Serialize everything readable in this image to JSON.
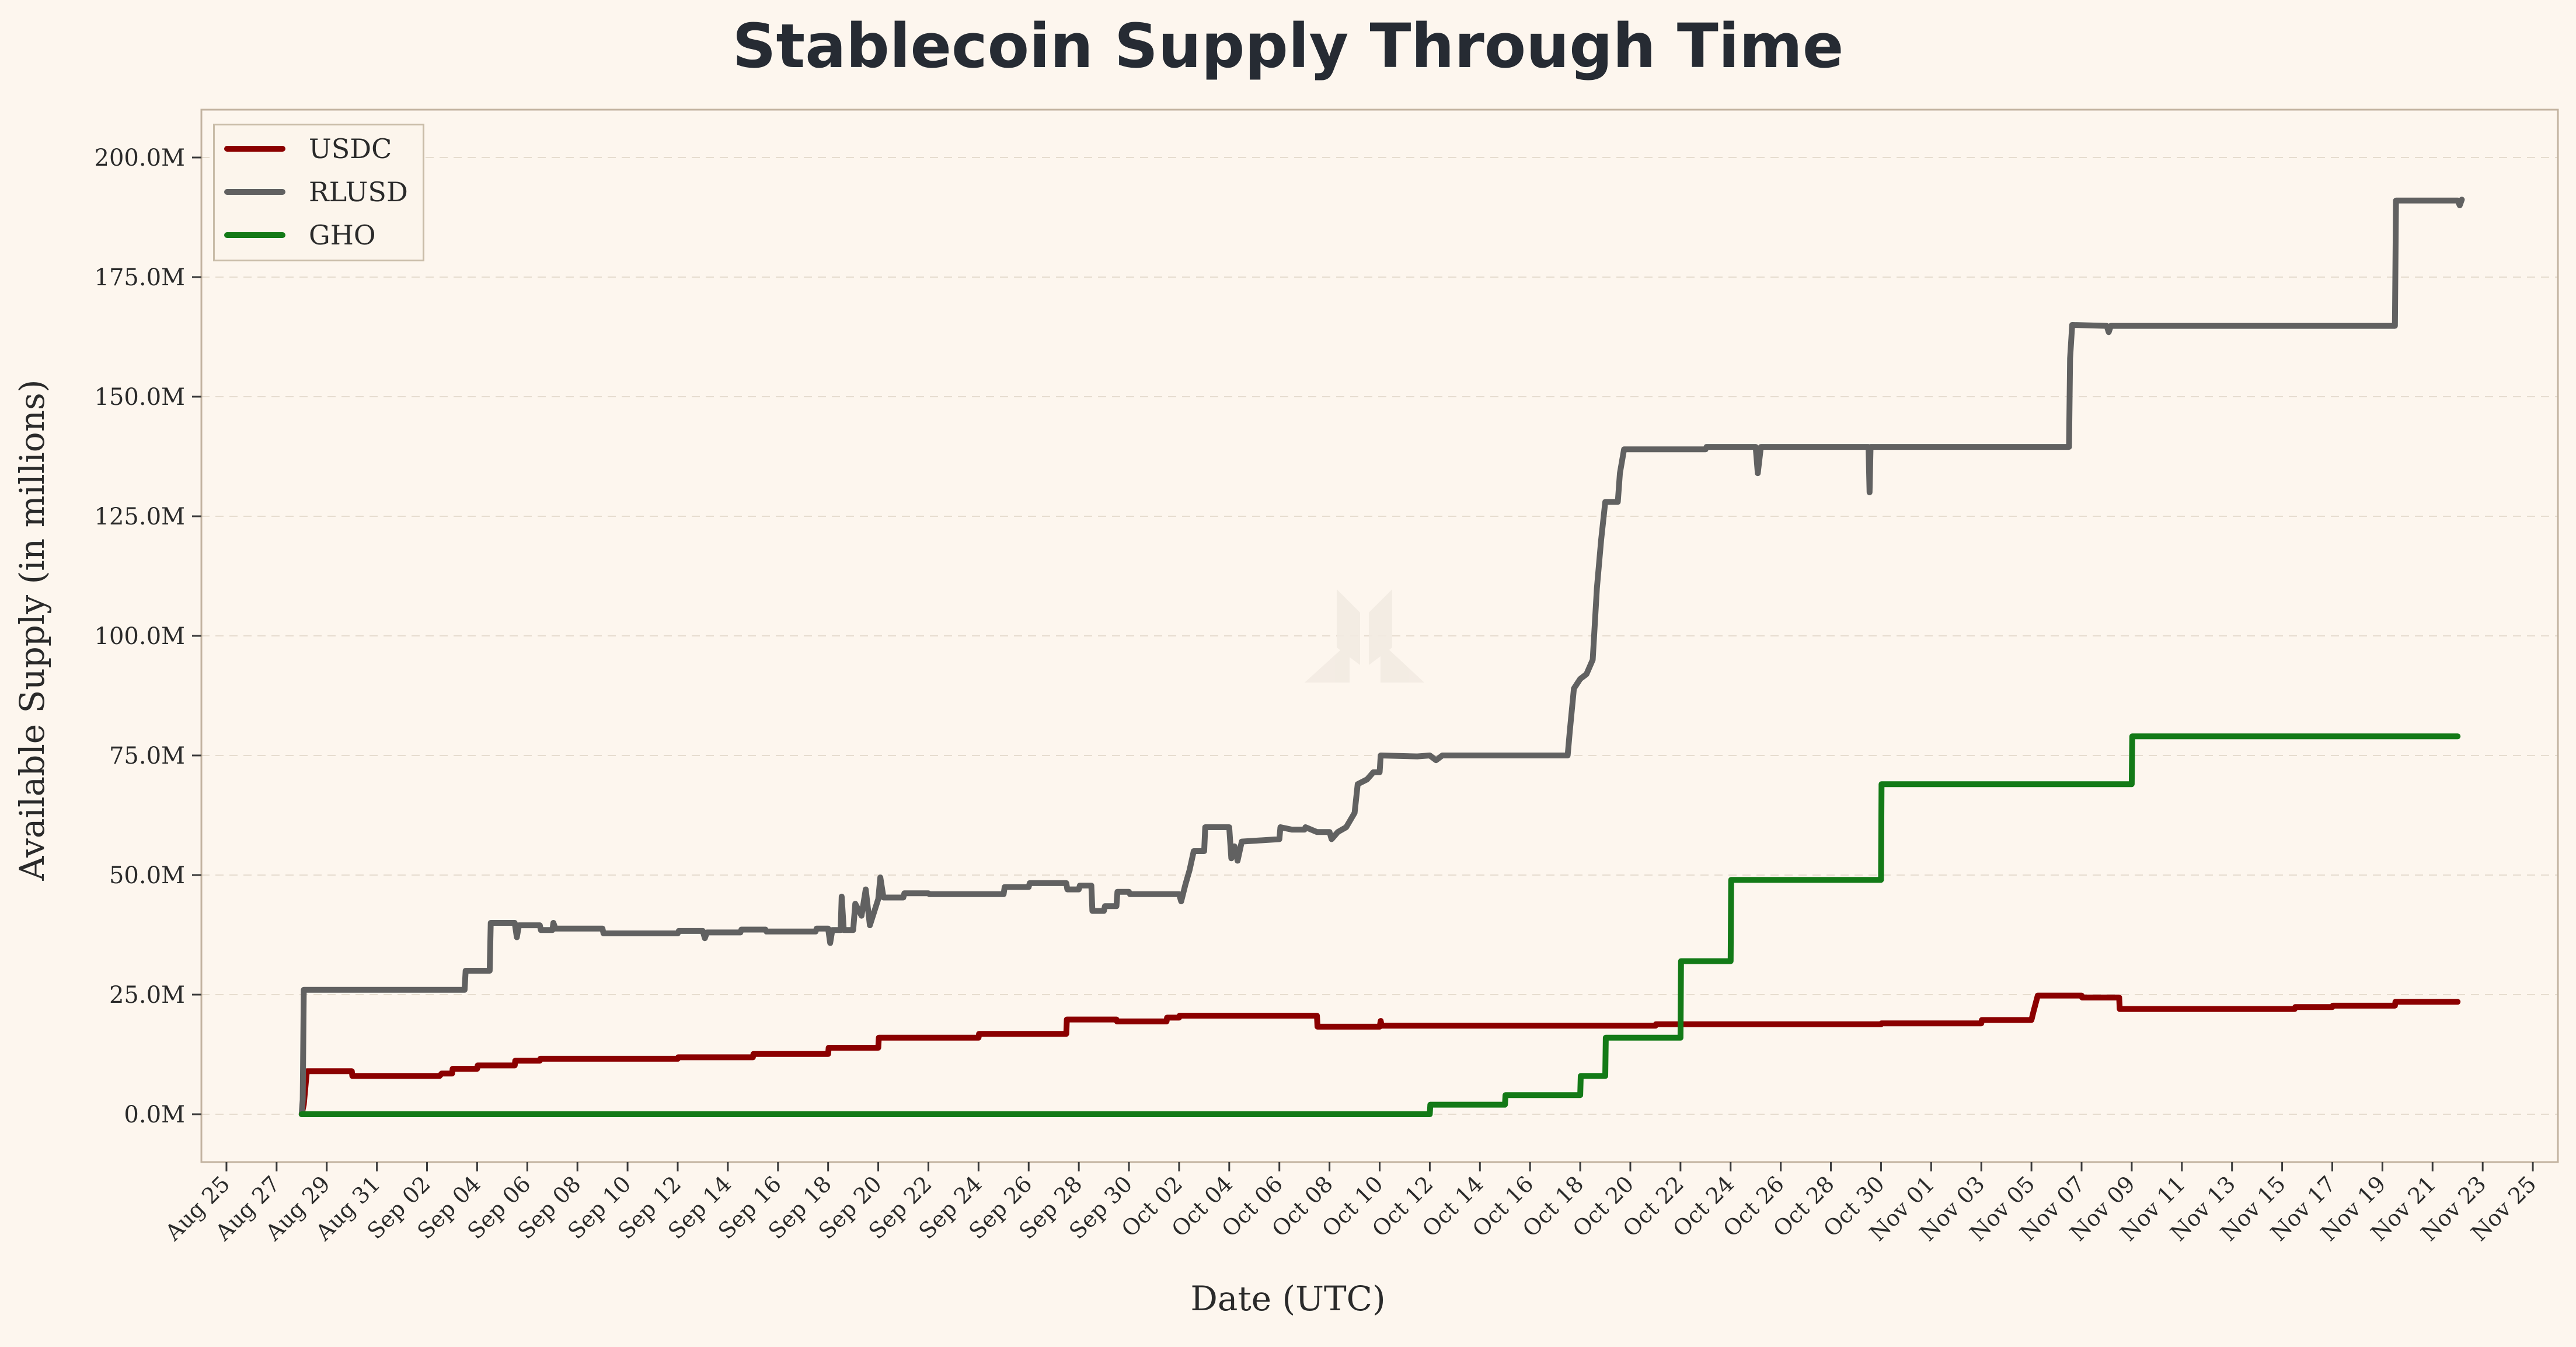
{
  "chart_data": {
    "type": "line",
    "title": "Stablecoin Supply Through Time",
    "xlabel": "Date (UTC)",
    "ylabel": "Available Supply (in millions)",
    "xlim": [
      "2025-08-24",
      "2025-11-26"
    ],
    "ylim": [
      -10,
      210
    ],
    "yticks": [
      0,
      25,
      50,
      75,
      100,
      125,
      150,
      175,
      200
    ],
    "ytick_labels": [
      "0.0M",
      "25.0M",
      "50.0M",
      "75.0M",
      "100.0M",
      "125.0M",
      "150.0M",
      "175.0M",
      "200.0M"
    ],
    "xtick_dates": [
      "2025-08-25",
      "2025-08-27",
      "2025-08-29",
      "2025-08-31",
      "2025-09-02",
      "2025-09-04",
      "2025-09-06",
      "2025-09-08",
      "2025-09-10",
      "2025-09-12",
      "2025-09-14",
      "2025-09-16",
      "2025-09-18",
      "2025-09-20",
      "2025-09-22",
      "2025-09-24",
      "2025-09-26",
      "2025-09-28",
      "2025-09-30",
      "2025-10-02",
      "2025-10-04",
      "2025-10-06",
      "2025-10-08",
      "2025-10-10",
      "2025-10-12",
      "2025-10-14",
      "2025-10-16",
      "2025-10-18",
      "2025-10-20",
      "2025-10-22",
      "2025-10-24",
      "2025-10-26",
      "2025-10-28",
      "2025-10-30",
      "2025-11-01",
      "2025-11-03",
      "2025-11-05",
      "2025-11-07",
      "2025-11-09",
      "2025-11-11",
      "2025-11-13",
      "2025-11-15",
      "2025-11-17",
      "2025-11-19",
      "2025-11-21",
      "2025-11-23",
      "2025-11-25"
    ],
    "xtick_labels": [
      "Aug 25",
      "Aug 27",
      "Aug 29",
      "Aug 31",
      "Sep 02",
      "Sep 04",
      "Sep 06",
      "Sep 08",
      "Sep 10",
      "Sep 12",
      "Sep 14",
      "Sep 16",
      "Sep 18",
      "Sep 20",
      "Sep 22",
      "Sep 24",
      "Sep 26",
      "Sep 28",
      "Sep 30",
      "Oct 02",
      "Oct 04",
      "Oct 06",
      "Oct 08",
      "Oct 10",
      "Oct 12",
      "Oct 14",
      "Oct 16",
      "Oct 18",
      "Oct 20",
      "Oct 22",
      "Oct 24",
      "Oct 26",
      "Oct 28",
      "Oct 30",
      "Nov 01",
      "Nov 03",
      "Nov 05",
      "Nov 07",
      "Nov 09",
      "Nov 11",
      "Nov 13",
      "Nov 15",
      "Nov 17",
      "Nov 19",
      "Nov 21",
      "Nov 23",
      "Nov 25"
    ],
    "grid": "y-dashed",
    "legend_position": "top-left",
    "series": [
      {
        "name": "USDC",
        "color": "#8b0000",
        "points": [
          [
            "2025-08-28",
            0
          ],
          [
            "2025-08-28 02:00",
            2
          ],
          [
            "2025-08-28 05:00",
            9
          ],
          [
            "2025-08-30",
            9
          ],
          [
            "2025-08-30 00:30",
            8
          ],
          [
            "2025-09-02 12:00",
            8
          ],
          [
            "2025-09-02 14:00",
            8.5
          ],
          [
            "2025-09-03",
            8.5
          ],
          [
            "2025-09-03 00:30",
            9.5
          ],
          [
            "2025-09-04",
            9.5
          ],
          [
            "2025-09-04 00:30",
            10.2
          ],
          [
            "2025-09-05 12:00",
            10.2
          ],
          [
            "2025-09-05 12:30",
            11.2
          ],
          [
            "2025-09-06 12:00",
            11.2
          ],
          [
            "2025-09-06 12:30",
            11.6
          ],
          [
            "2025-09-12",
            11.6
          ],
          [
            "2025-09-12 00:30",
            11.9
          ],
          [
            "2025-09-15",
            11.9
          ],
          [
            "2025-09-15 00:30",
            12.6
          ],
          [
            "2025-09-18",
            12.6
          ],
          [
            "2025-09-18 00:30",
            13.9
          ],
          [
            "2025-09-20",
            13.9
          ],
          [
            "2025-09-20 00:30",
            16
          ],
          [
            "2025-09-24",
            16
          ],
          [
            "2025-09-24 00:30",
            16.8
          ],
          [
            "2025-09-27 12:00",
            16.8
          ],
          [
            "2025-09-27 12:30",
            19.8
          ],
          [
            "2025-09-29 12:00",
            19.8
          ],
          [
            "2025-09-29 12:30",
            19.4
          ],
          [
            "2025-10-01 12:00",
            19.4
          ],
          [
            "2025-10-01 12:30",
            20.2
          ],
          [
            "2025-10-02",
            20.2
          ],
          [
            "2025-10-02 00:30",
            20.6
          ],
          [
            "2025-10-07 12:00",
            20.6
          ],
          [
            "2025-10-07 12:30",
            18.3
          ],
          [
            "2025-10-10",
            18.3
          ],
          [
            "2025-10-10 01:00",
            19.5
          ],
          [
            "2025-10-10 02:00",
            18.5
          ],
          [
            "2025-10-21",
            18.5
          ],
          [
            "2025-10-21 00:30",
            18.8
          ],
          [
            "2025-10-30",
            18.8
          ],
          [
            "2025-10-30 00:30",
            19
          ],
          [
            "2025-11-03",
            19
          ],
          [
            "2025-11-03 00:30",
            19.7
          ],
          [
            "2025-11-05",
            19.7
          ],
          [
            "2025-11-05 02:00",
            21.5
          ],
          [
            "2025-11-05 06:00",
            24.8
          ],
          [
            "2025-11-07",
            24.8
          ],
          [
            "2025-11-07 00:30",
            24.4
          ],
          [
            "2025-11-08 12:00",
            24.4
          ],
          [
            "2025-11-08 12:30",
            22
          ],
          [
            "2025-11-15 12:00",
            22
          ],
          [
            "2025-11-15 12:30",
            22.4
          ],
          [
            "2025-11-17",
            22.4
          ],
          [
            "2025-11-17 00:30",
            22.7
          ],
          [
            "2025-11-19 12:00",
            22.7
          ],
          [
            "2025-11-19 12:30",
            23.5
          ],
          [
            "2025-11-22",
            23.5
          ]
        ]
      },
      {
        "name": "RLUSD",
        "color": "#616161",
        "points": [
          [
            "2025-08-28",
            0
          ],
          [
            "2025-08-28 01:00",
            3
          ],
          [
            "2025-08-28 02:00",
            26
          ],
          [
            "2025-09-03 12:00",
            26
          ],
          [
            "2025-09-03 13:00",
            30
          ],
          [
            "2025-09-04 12:00",
            30
          ],
          [
            "2025-09-04 13:00",
            40
          ],
          [
            "2025-09-05 12:00",
            40
          ],
          [
            "2025-09-05 14:00",
            37
          ],
          [
            "2025-09-05 16:00",
            39.5
          ],
          [
            "2025-09-06 12:00",
            39.5
          ],
          [
            "2025-09-06 13:00",
            38.5
          ],
          [
            "2025-09-07",
            38.5
          ],
          [
            "2025-09-07 01:00",
            40
          ],
          [
            "2025-09-07 03:00",
            38.8
          ],
          [
            "2025-09-09",
            38.8
          ],
          [
            "2025-09-09 01:00",
            37.8
          ],
          [
            "2025-09-12",
            37.8
          ],
          [
            "2025-09-12 01:00",
            38.3
          ],
          [
            "2025-09-13",
            38.3
          ],
          [
            "2025-09-13 02:00",
            36.8
          ],
          [
            "2025-09-13 04:00",
            38
          ],
          [
            "2025-09-14 12:00",
            38
          ],
          [
            "2025-09-14 13:00",
            38.6
          ],
          [
            "2025-09-15 12:00",
            38.6
          ],
          [
            "2025-09-15 13:00",
            38.2
          ],
          [
            "2025-09-17 12:00",
            38.2
          ],
          [
            "2025-09-17 13:00",
            38.8
          ],
          [
            "2025-09-18",
            38.8
          ],
          [
            "2025-09-18 02:00",
            35.8
          ],
          [
            "2025-09-18 04:00",
            38.5
          ],
          [
            "2025-09-18 12:00",
            38.5
          ],
          [
            "2025-09-18 13:00",
            45.5
          ],
          [
            "2025-09-18 15:00",
            38.5
          ],
          [
            "2025-09-19",
            38.5
          ],
          [
            "2025-09-19 02:00",
            44
          ],
          [
            "2025-09-19 08:00",
            41.5
          ],
          [
            "2025-09-19 12:00",
            47
          ],
          [
            "2025-09-19 16:00",
            39.5
          ],
          [
            "2025-09-20",
            45
          ],
          [
            "2025-09-20 02:00",
            49.5
          ],
          [
            "2025-09-20 05:00",
            45.3
          ],
          [
            "2025-09-21",
            45.3
          ],
          [
            "2025-09-21 01:00",
            46.2
          ],
          [
            "2025-09-22",
            46.2
          ],
          [
            "2025-09-22 01:00",
            46
          ],
          [
            "2025-09-25",
            46
          ],
          [
            "2025-09-25 01:00",
            47.5
          ],
          [
            "2025-09-26",
            47.5
          ],
          [
            "2025-09-26 01:00",
            48.3
          ],
          [
            "2025-09-27 12:00",
            48.3
          ],
          [
            "2025-09-27 13:00",
            47
          ],
          [
            "2025-09-28",
            47
          ],
          [
            "2025-09-28 01:00",
            47.8
          ],
          [
            "2025-09-28 12:00",
            47.8
          ],
          [
            "2025-09-28 13:00",
            42.5
          ],
          [
            "2025-09-29",
            42.5
          ],
          [
            "2025-09-29 01:00",
            43.5
          ],
          [
            "2025-09-29 12:00",
            43.5
          ],
          [
            "2025-09-29 13:00",
            46.5
          ],
          [
            "2025-09-30",
            46.5
          ],
          [
            "2025-09-30 01:00",
            46
          ],
          [
            "2025-10-02",
            46
          ],
          [
            "2025-10-02 02:00",
            44.5
          ],
          [
            "2025-10-02 06:00",
            48
          ],
          [
            "2025-10-02 10:00",
            51
          ],
          [
            "2025-10-02 14:00",
            55
          ],
          [
            "2025-10-03",
            55
          ],
          [
            "2025-10-03 01:00",
            60
          ],
          [
            "2025-10-04",
            60
          ],
          [
            "2025-10-04 02:00",
            53.5
          ],
          [
            "2025-10-04 05:00",
            56
          ],
          [
            "2025-10-04 08:00",
            53
          ],
          [
            "2025-10-04 12:00",
            57
          ],
          [
            "2025-10-06",
            57.5
          ],
          [
            "2025-10-06 01:00",
            60
          ],
          [
            "2025-10-06 12:00",
            59.5
          ],
          [
            "2025-10-07",
            59.5
          ],
          [
            "2025-10-07 01:00",
            60
          ],
          [
            "2025-10-07 12:00",
            59
          ],
          [
            "2025-10-08",
            59
          ],
          [
            "2025-10-08 02:00",
            57.5
          ],
          [
            "2025-10-08 08:00",
            59
          ],
          [
            "2025-10-08 16:00",
            60
          ],
          [
            "2025-10-09",
            63
          ],
          [
            "2025-10-09 03:00",
            69
          ],
          [
            "2025-10-09 12:00",
            70
          ],
          [
            "2025-10-09 18:00",
            71.5
          ],
          [
            "2025-10-10",
            71.5
          ],
          [
            "2025-10-10 01:00",
            75
          ],
          [
            "2025-10-11 12:00",
            74.8
          ],
          [
            "2025-10-12",
            75
          ],
          [
            "2025-10-12 06:00",
            74
          ],
          [
            "2025-10-12 12:00",
            75
          ],
          [
            "2025-10-17 12:00",
            75
          ],
          [
            "2025-10-17 14:00",
            80
          ],
          [
            "2025-10-17 18:00",
            89
          ],
          [
            "2025-10-18",
            91
          ],
          [
            "2025-10-18 06:00",
            92
          ],
          [
            "2025-10-18 12:00",
            95
          ],
          [
            "2025-10-18 16:00",
            110
          ],
          [
            "2025-10-18 20:00",
            120
          ],
          [
            "2025-10-19",
            128
          ],
          [
            "2025-10-19 12:00",
            128
          ],
          [
            "2025-10-19 14:00",
            134
          ],
          [
            "2025-10-19 18:00",
            139
          ],
          [
            "2025-10-23",
            139
          ],
          [
            "2025-10-23 01:00",
            139.5
          ],
          [
            "2025-10-25",
            139.5
          ],
          [
            "2025-10-25 02:00",
            134
          ],
          [
            "2025-10-25 05:00",
            139.5
          ],
          [
            "2025-10-29 12:00",
            139.5
          ],
          [
            "2025-10-29 13:00",
            130
          ],
          [
            "2025-10-29 14:00",
            139.5
          ],
          [
            "2025-11-06 12:00",
            139.5
          ],
          [
            "2025-11-06 13:00",
            158
          ],
          [
            "2025-11-06 15:00",
            165
          ],
          [
            "2025-11-08",
            164.8
          ],
          [
            "2025-11-08 02:00",
            163.5
          ],
          [
            "2025-11-08 04:00",
            164.8
          ],
          [
            "2025-11-19 12:00",
            164.8
          ],
          [
            "2025-11-19 13:00",
            191
          ],
          [
            "2025-11-22",
            191
          ],
          [
            "2025-11-22 02:00",
            190
          ],
          [
            "2025-11-22 04:00",
            191.2
          ]
        ]
      },
      {
        "name": "GHO",
        "color": "#137a17",
        "points": [
          [
            "2025-08-28",
            0
          ],
          [
            "2025-10-12",
            0
          ],
          [
            "2025-10-12 00:30",
            2
          ],
          [
            "2025-10-15",
            2
          ],
          [
            "2025-10-15 00:30",
            4
          ],
          [
            "2025-10-18",
            4
          ],
          [
            "2025-10-18 00:30",
            8
          ],
          [
            "2025-10-19",
            8
          ],
          [
            "2025-10-19 00:30",
            16
          ],
          [
            "2025-10-22",
            16
          ],
          [
            "2025-10-22 00:30",
            32
          ],
          [
            "2025-10-24",
            32
          ],
          [
            "2025-10-24 00:30",
            49
          ],
          [
            "2025-10-30",
            49
          ],
          [
            "2025-10-30 00:30",
            69
          ],
          [
            "2025-11-09",
            69
          ],
          [
            "2025-11-09 00:30",
            79
          ],
          [
            "2025-11-22",
            79
          ]
        ]
      }
    ]
  }
}
